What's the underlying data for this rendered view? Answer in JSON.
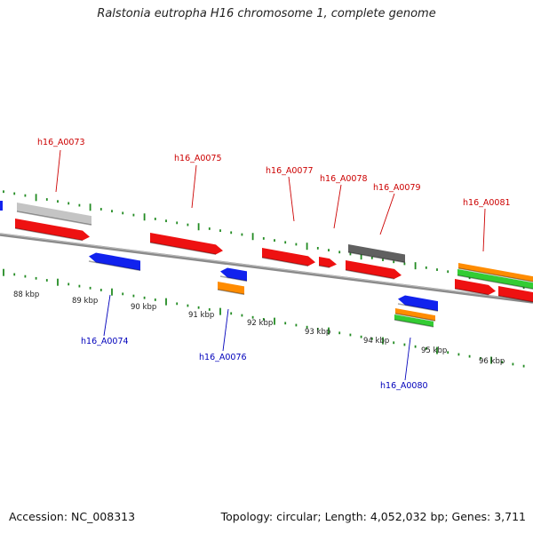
{
  "title": "Ralstonia eutropha H16 chromosome 1, complete genome",
  "footer": {
    "accession": "Accession: NC_008313",
    "summary": "Topology: circular; Length: 4,052,032 bp; Genes: 3,711"
  },
  "colors": {
    "label_top": "#cc0000",
    "label_bottom": "#0000bb",
    "backbone": "#808080",
    "tick": "#228b22",
    "red": "#ee1111",
    "blue": "#1122ee",
    "orange": "#ff8c00",
    "green": "#33cc33",
    "gray_dark": "#606060",
    "gray_light": "#c4c4c4"
  },
  "kbp_labels": [
    "88 kbp",
    "89 kbp",
    "90 kbp",
    "91 kbp",
    "92 kbp",
    "93 kbp",
    "94 kbp",
    "95 kbp",
    "96 kbp"
  ],
  "gene_labels_top": [
    "h16_A0073",
    "h16_A0075",
    "h16_A0077",
    "h16_A0078",
    "h16_A0079",
    "h16_A0081"
  ],
  "gene_labels_bottom": [
    "h16_A0074",
    "h16_A0076",
    "h16_A0080"
  ]
}
